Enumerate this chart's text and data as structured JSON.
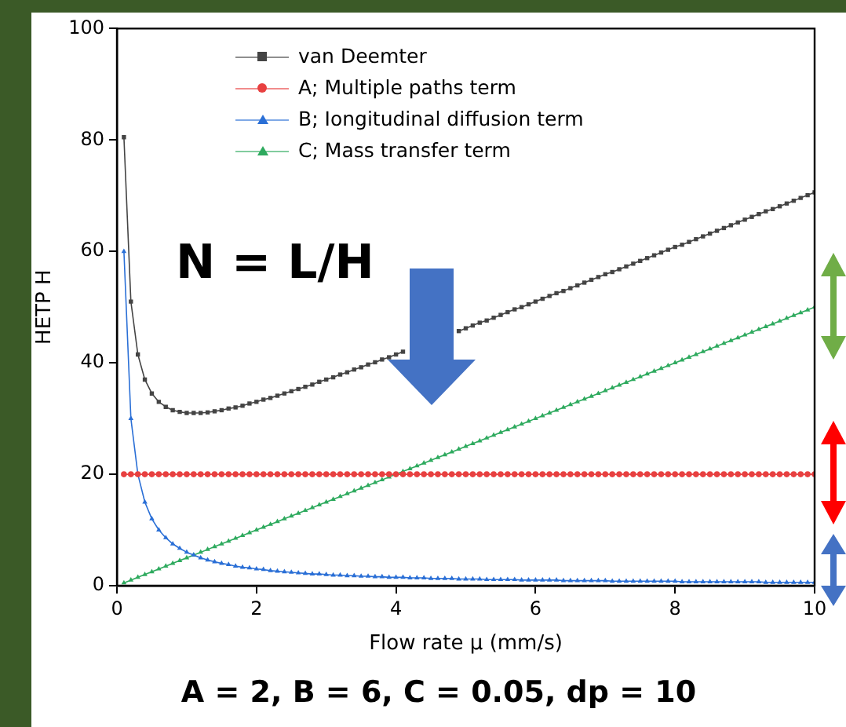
{
  "chart_data": {
    "type": "line",
    "xlabel": "Flow rate μ (mm/s)",
    "ylabel": "HETP H",
    "annotations": [
      "N = L/H",
      "A = 2, B = 6, C = 0.05, dp = 10"
    ],
    "x": [
      0.1,
      0.2,
      0.3,
      0.4,
      0.5,
      0.6,
      0.7,
      0.8,
      0.9,
      1,
      1.1,
      1.2,
      1.3,
      1.4,
      1.5,
      1.6,
      1.7,
      1.8,
      1.9,
      2,
      2.1,
      2.2,
      2.3,
      2.4,
      2.5,
      2.6,
      2.7,
      2.8,
      2.9,
      3,
      3.1,
      3.2,
      3.3,
      3.4,
      3.5,
      3.6,
      3.7,
      3.8,
      3.9,
      4,
      4.1,
      4.2,
      4.3,
      4.4,
      4.5,
      4.6,
      4.7,
      4.8,
      4.9,
      5,
      5.1,
      5.2,
      5.3,
      5.4,
      5.5,
      5.6,
      5.7,
      5.8,
      5.9,
      6,
      6.1,
      6.2,
      6.3,
      6.4,
      6.5,
      6.6,
      6.7,
      6.8,
      6.9,
      7,
      7.1,
      7.2,
      7.3,
      7.4,
      7.5,
      7.6,
      7.7,
      7.8,
      7.9,
      8,
      8.1,
      8.2,
      8.3,
      8.4,
      8.5,
      8.6,
      8.7,
      8.8,
      8.9,
      9,
      9.1,
      9.2,
      9.3,
      9.4,
      9.5,
      9.6,
      9.7,
      9.8,
      9.9,
      10
    ],
    "xlim": [
      0,
      10
    ],
    "xticks": [
      0,
      2,
      4,
      6,
      8,
      10
    ],
    "ylim": [
      0,
      100
    ],
    "yticks": [
      0,
      20,
      40,
      60,
      80,
      100
    ],
    "legend": "top",
    "grid": false,
    "series": [
      {
        "name": "van Deemter",
        "color": "#444444",
        "marker": "square",
        "values": [
          80.5,
          51,
          41.5,
          37,
          34.5,
          33,
          32.1,
          31.5,
          31.2,
          31,
          31,
          31,
          31.1,
          31.3,
          31.5,
          31.8,
          32,
          32.3,
          32.7,
          33,
          33.4,
          33.7,
          34.1,
          34.5,
          34.9,
          35.3,
          35.7,
          36.1,
          36.6,
          37,
          37.4,
          37.9,
          38.3,
          38.8,
          39.2,
          39.7,
          40.1,
          40.6,
          41,
          41.5,
          42,
          null,
          null,
          null,
          null,
          null,
          null,
          null,
          45.7,
          46.2,
          46.7,
          47.2,
          47.6,
          48.1,
          48.6,
          49.1,
          49.6,
          50,
          50.5,
          51,
          51.5,
          52,
          52.5,
          52.9,
          53.4,
          53.9,
          54.4,
          54.9,
          55.4,
          55.9,
          56.3,
          56.8,
          57.3,
          57.8,
          58.3,
          58.8,
          59.3,
          59.8,
          60.3,
          60.8,
          61.2,
          61.7,
          62.2,
          62.7,
          63.2,
          63.7,
          64.2,
          64.7,
          65.2,
          65.7,
          66.2,
          66.7,
          67.2,
          67.6,
          68.1,
          68.6,
          69.1,
          69.6,
          70.1,
          70.6
        ]
      },
      {
        "name": "A; Multiple paths term",
        "color": "#e84040",
        "marker": "circle",
        "values": [
          20,
          20,
          20,
          20,
          20,
          20,
          20,
          20,
          20,
          20,
          20,
          20,
          20,
          20,
          20,
          20,
          20,
          20,
          20,
          20,
          20,
          20,
          20,
          20,
          20,
          20,
          20,
          20,
          20,
          20,
          20,
          20,
          20,
          20,
          20,
          20,
          20,
          20,
          20,
          20,
          20,
          20,
          20,
          20,
          20,
          20,
          20,
          20,
          20,
          20,
          20,
          20,
          20,
          20,
          20,
          20,
          20,
          20,
          20,
          20,
          20,
          20,
          20,
          20,
          20,
          20,
          20,
          20,
          20,
          20,
          20,
          20,
          20,
          20,
          20,
          20,
          20,
          20,
          20,
          20,
          20,
          20,
          20,
          20,
          20,
          20,
          20,
          20,
          20,
          20,
          20,
          20,
          20,
          20,
          20,
          20,
          20,
          20,
          20,
          20
        ]
      },
      {
        "name": "B; Iongitudinal diffusion term",
        "color": "#2a6fd6",
        "marker": "triangle",
        "values": [
          60,
          30,
          20,
          15,
          12,
          10,
          8.6,
          7.5,
          6.7,
          6,
          5.5,
          5,
          4.6,
          4.3,
          4,
          3.8,
          3.5,
          3.3,
          3.2,
          3,
          2.9,
          2.7,
          2.6,
          2.5,
          2.4,
          2.3,
          2.2,
          2.1,
          2.1,
          2,
          1.9,
          1.9,
          1.8,
          1.8,
          1.7,
          1.7,
          1.6,
          1.6,
          1.5,
          1.5,
          1.5,
          1.4,
          1.4,
          1.4,
          1.3,
          1.3,
          1.3,
          1.3,
          1.2,
          1.2,
          1.2,
          1.2,
          1.1,
          1.1,
          1.1,
          1.1,
          1.1,
          1,
          1,
          1,
          1,
          1,
          1,
          0.9,
          0.9,
          0.9,
          0.9,
          0.9,
          0.9,
          0.9,
          0.8,
          0.8,
          0.8,
          0.8,
          0.8,
          0.8,
          0.8,
          0.8,
          0.8,
          0.8,
          0.7,
          0.7,
          0.7,
          0.7,
          0.7,
          0.7,
          0.7,
          0.7,
          0.7,
          0.7,
          0.7,
          0.7,
          0.6,
          0.6,
          0.6,
          0.6,
          0.6,
          0.6,
          0.6,
          0.6
        ]
      },
      {
        "name": "C; Mass transfer term",
        "color": "#2eaa5e",
        "marker": "triangle",
        "values": [
          0.5,
          1,
          1.5,
          2,
          2.5,
          3,
          3.5,
          4,
          4.5,
          5,
          5.5,
          6,
          6.5,
          7,
          7.5,
          8,
          8.5,
          9,
          9.5,
          10,
          10.5,
          11,
          11.5,
          12,
          12.5,
          13,
          13.5,
          14,
          14.5,
          15,
          15.5,
          16,
          16.5,
          17,
          17.5,
          18,
          18.5,
          19,
          19.5,
          20,
          20.5,
          21,
          21.5,
          22,
          22.5,
          23,
          23.5,
          24,
          24.5,
          25,
          25.5,
          26,
          26.5,
          27,
          27.5,
          28,
          28.5,
          29,
          29.5,
          30,
          30.5,
          31,
          31.5,
          32,
          32.5,
          33,
          33.5,
          34,
          34.5,
          35,
          35.5,
          36,
          36.5,
          37,
          37.5,
          38,
          38.5,
          39,
          39.5,
          40,
          40.5,
          41,
          41.5,
          42,
          42.5,
          43,
          43.5,
          44,
          44.5,
          45,
          45.5,
          46,
          46.5,
          47,
          47.5,
          48,
          48.5,
          49,
          49.5,
          50
        ]
      }
    ]
  }
}
